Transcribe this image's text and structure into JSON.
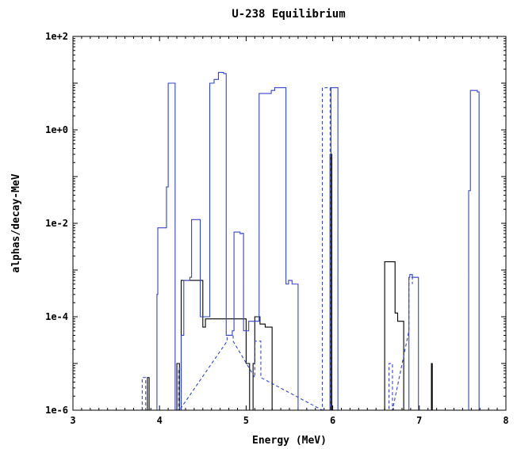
{
  "chart_data": {
    "type": "line",
    "title": "U-238 Equilibrium",
    "xlabel": "Energy (MeV)",
    "ylabel": "alphas/decay-MeV",
    "xlim": [
      3,
      8
    ],
    "ylim": [
      1e-06,
      100
    ],
    "yscale": "log",
    "grid": false,
    "legend": null,
    "x_ticks": [
      3,
      4,
      5,
      6,
      7,
      8
    ],
    "x_tick_labels": [
      "3",
      "4",
      "5",
      "6",
      "7",
      "8"
    ],
    "y_ticks": [
      1e-06,
      0.0001,
      0.01,
      1,
      100
    ],
    "y_tick_labels": [
      "1e-6",
      "1e-4",
      "1e-2",
      "1e+0",
      "1e+2"
    ],
    "series": [
      {
        "style": "solid",
        "color": "#000000",
        "x": [
          3.86,
          3.86,
          3.88,
          3.88,
          4.2,
          4.2,
          4.23,
          4.23,
          4.25,
          4.25,
          4.5,
          4.5,
          4.53,
          4.53,
          5.0,
          5.0,
          5.04,
          5.04,
          5.08,
          5.08,
          5.1,
          5.1,
          5.16,
          5.16,
          5.22,
          5.22,
          5.3,
          5.3,
          5.97,
          5.97,
          5.99,
          5.99,
          6.6,
          6.6,
          6.72,
          6.72,
          6.75,
          6.75,
          6.82,
          6.82,
          7.14,
          7.14,
          7.15,
          7.15
        ],
        "y": [
          1e-06,
          5e-06,
          5e-06,
          1e-06,
          1e-06,
          1e-05,
          1e-05,
          1e-06,
          1e-06,
          0.0006,
          0.0006,
          6e-05,
          6e-05,
          9e-05,
          9e-05,
          1e-05,
          1e-05,
          1e-06,
          1e-06,
          1e-05,
          1e-05,
          0.0001,
          0.0001,
          7e-05,
          7e-05,
          6e-05,
          6e-05,
          1e-06,
          1e-06,
          0.3,
          0.3,
          1e-06,
          1e-06,
          0.0015,
          0.0015,
          0.00012,
          0.00012,
          8e-05,
          8e-05,
          1e-06,
          1e-06,
          1e-05,
          1e-05,
          1e-06
        ]
      },
      {
        "style": "solid",
        "color": "#3344cc",
        "x": [
          3.97,
          3.97,
          3.98,
          3.98,
          4.03,
          4.03,
          4.08,
          4.08,
          4.1,
          4.1,
          4.18,
          4.18,
          4.25,
          4.25,
          4.28,
          4.28,
          4.35,
          4.35,
          4.37,
          4.37,
          4.47,
          4.47,
          4.48,
          4.48,
          4.51,
          4.51,
          4.55,
          4.55,
          4.58,
          4.58,
          4.63,
          4.63,
          4.68,
          4.68,
          4.74,
          4.74,
          4.77,
          4.77,
          4.84,
          4.84,
          4.86,
          4.86,
          4.93,
          4.93,
          4.95,
          4.95,
          4.97,
          4.97,
          5.03,
          5.03,
          5.1,
          5.1,
          5.15,
          5.15,
          5.29,
          5.29,
          5.33,
          5.33,
          5.38,
          5.38,
          5.46,
          5.46,
          5.49,
          5.49,
          5.53,
          5.53,
          5.56,
          5.56,
          5.6,
          5.6,
          5.98,
          5.98,
          5.99,
          5.99,
          6.0,
          6.0,
          6.04,
          6.04,
          6.06,
          6.06,
          6.88,
          6.88,
          6.89,
          6.89,
          6.92,
          6.92,
          6.99,
          6.99,
          7.57,
          7.57,
          7.59,
          7.59,
          7.67,
          7.67,
          7.69,
          7.69
        ],
        "y": [
          1e-06,
          0.0003,
          0.0003,
          0.008,
          0.008,
          0.008,
          0.008,
          0.06,
          0.06,
          10,
          10,
          1e-06,
          1e-06,
          4e-05,
          4e-05,
          0.0006,
          0.0006,
          0.0007,
          0.0007,
          0.012,
          0.012,
          0.0001,
          0.0001,
          0.0001,
          0.0001,
          0.0001,
          0.0001,
          0.0001,
          0.0001,
          10,
          10,
          12,
          12,
          17,
          17,
          16,
          16,
          4e-05,
          4e-05,
          5e-05,
          5e-05,
          0.0065,
          0.0065,
          0.006,
          0.006,
          0.0061,
          0.0061,
          5e-05,
          5e-05,
          8e-05,
          8e-05,
          8e-05,
          8e-05,
          6,
          6,
          7,
          7,
          8,
          8,
          8,
          8,
          0.0005,
          0.0005,
          0.0006,
          0.0006,
          0.0005,
          0.0005,
          0.0005,
          0.0005,
          1e-06,
          1e-06,
          8,
          8,
          8,
          8,
          8,
          8,
          8,
          8,
          1e-06,
          1e-06,
          0.0007,
          0.0007,
          0.0008,
          0.0008,
          0.0007,
          0.0007,
          1e-06,
          1e-06,
          0.05,
          0.05,
          7,
          7,
          6.5,
          6.5,
          1e-06
        ]
      },
      {
        "style": "dashed",
        "color": "#3344cc",
        "x": [
          3.8,
          3.8,
          3.84,
          3.84,
          4.22,
          4.22,
          4.23,
          4.23,
          4.78,
          4.78,
          4.85,
          4.85,
          5.1,
          5.1,
          5.17,
          5.17,
          5.88,
          5.88,
          5.97,
          5.97,
          6.65,
          6.65,
          6.69,
          6.69,
          6.88,
          6.88,
          6.92,
          6.92
        ],
        "y": [
          1e-06,
          5e-06,
          5e-06,
          1e-06,
          1e-06,
          8e-06,
          8e-06,
          1e-06,
          3e-05,
          4e-05,
          4e-05,
          3e-05,
          5e-06,
          3e-05,
          3e-05,
          5e-06,
          1e-06,
          8,
          8,
          1e-06,
          1e-06,
          1e-05,
          1e-05,
          1e-06,
          5e-05,
          0.0007,
          0.0007,
          0.0005
        ]
      }
    ]
  }
}
